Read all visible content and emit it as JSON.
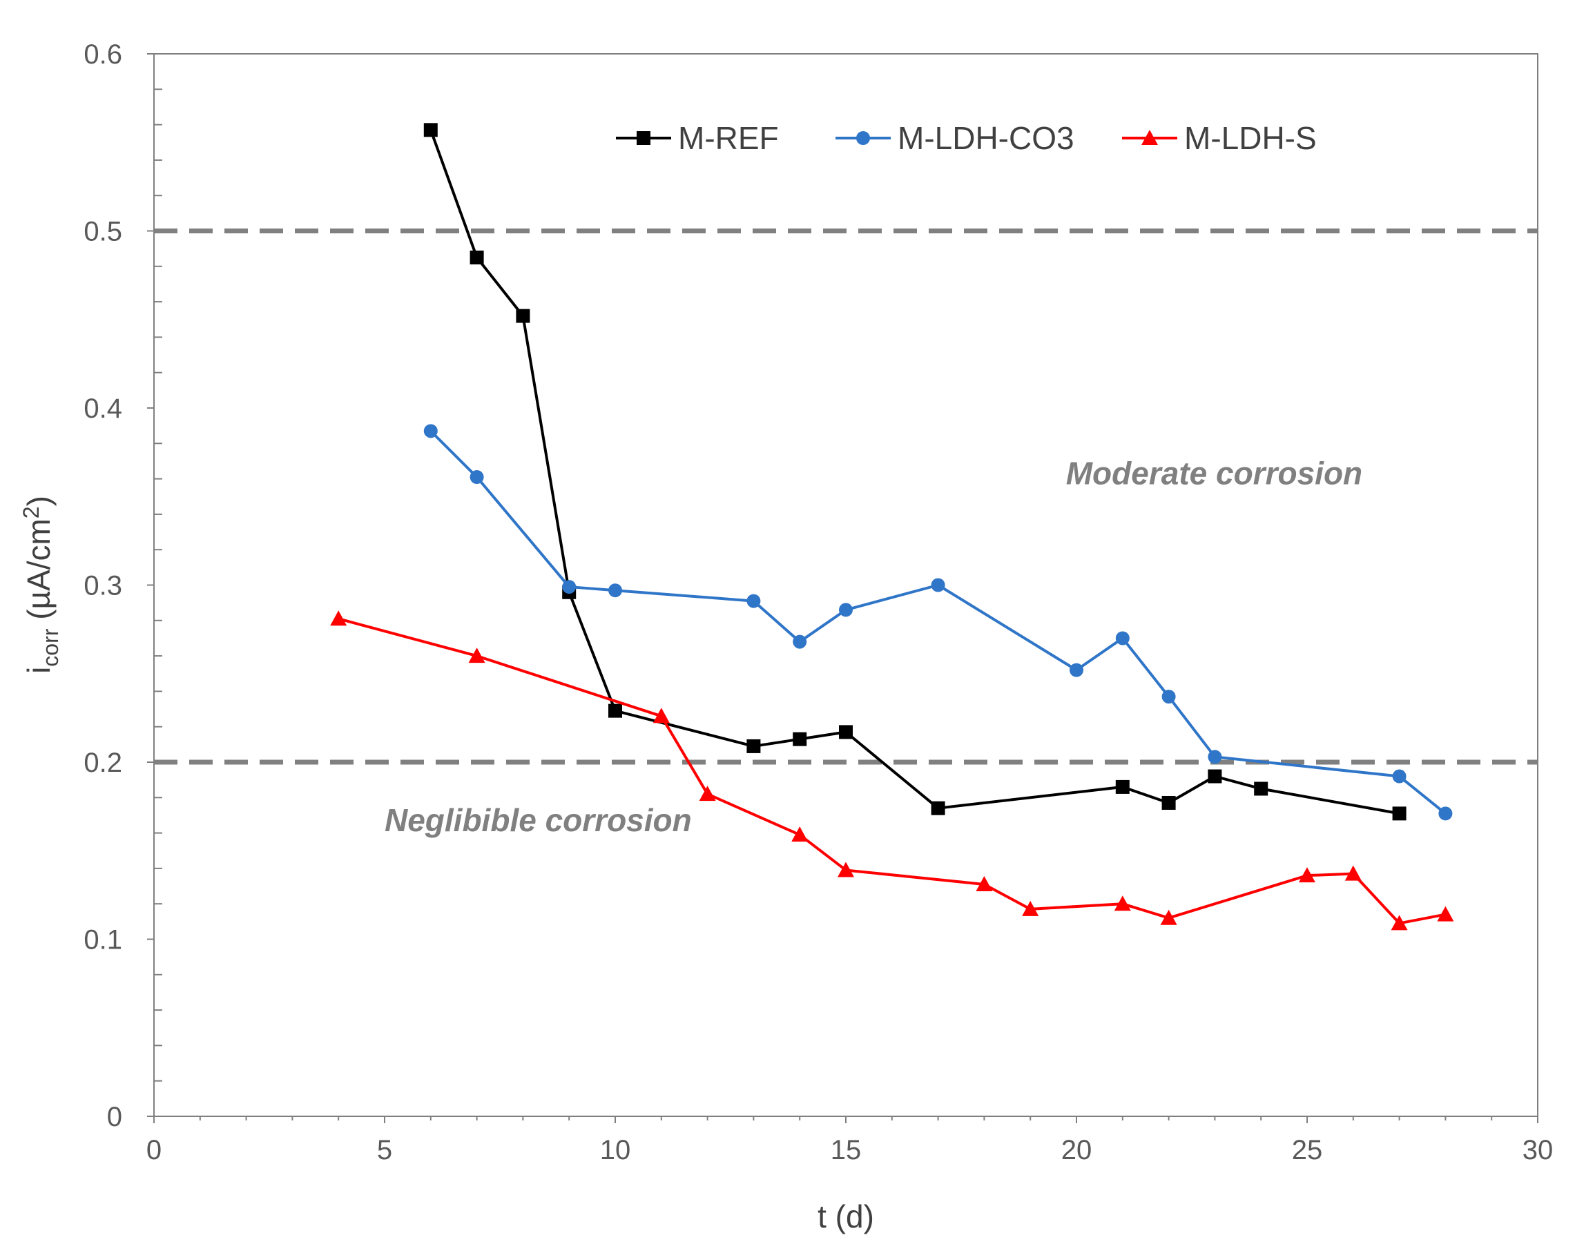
{
  "chart_data": {
    "type": "line",
    "title": "",
    "xlabel": "t (d)",
    "ylabel": {
      "base": "i",
      "subscript": "corr",
      "unit_prefix": " (µA/cm",
      "superscript": "2",
      "unit_suffix": ")"
    },
    "xlim": [
      0,
      30
    ],
    "ylim": [
      0,
      0.6
    ],
    "x_ticks": [
      "0",
      "5",
      "10",
      "15",
      "20",
      "25",
      "30"
    ],
    "y_ticks": [
      "0",
      "0.1",
      "0.2",
      "0.3",
      "0.4",
      "0.5",
      "0.6"
    ],
    "x_tick_values": [
      0,
      5,
      10,
      15,
      20,
      25,
      30
    ],
    "y_tick_values": [
      0,
      0.1,
      0.2,
      0.3,
      0.4,
      0.5,
      0.6
    ],
    "grid": false,
    "legend_position": "top-center",
    "thresholds": [
      {
        "value": 0.5,
        "color": "#808080"
      },
      {
        "value": 0.2,
        "color": "#808080"
      }
    ],
    "annotations": [
      {
        "text": "Moderate corrosion",
        "x": 26.2,
        "y": 0.357
      },
      {
        "text": "Neglibible corrosion",
        "x": 5.0,
        "y": 0.161
      }
    ],
    "series": [
      {
        "name": "M-REF",
        "color": "#000000",
        "marker": "square",
        "x": [
          6,
          7,
          8,
          9,
          10,
          13,
          14,
          15,
          17,
          21,
          22,
          23,
          24,
          27
        ],
        "y": [
          0.557,
          0.485,
          0.452,
          0.296,
          0.229,
          0.209,
          0.213,
          0.217,
          0.174,
          0.186,
          0.177,
          0.192,
          0.185,
          0.171
        ]
      },
      {
        "name": "M-LDH-CO3",
        "color": "#2F75C8",
        "marker": "circle",
        "x": [
          6,
          7,
          9,
          10,
          13,
          14,
          15,
          17,
          20,
          21,
          22,
          23,
          27,
          28
        ],
        "y": [
          0.387,
          0.361,
          0.299,
          0.297,
          0.291,
          0.268,
          0.286,
          0.3,
          0.252,
          0.27,
          0.237,
          0.203,
          0.192,
          0.171
        ]
      },
      {
        "name": "M-LDH-S",
        "color": "#FF0000",
        "marker": "triangle",
        "x": [
          4,
          7,
          11,
          12,
          14,
          15,
          18,
          19,
          21,
          22,
          25,
          26,
          27,
          28
        ],
        "y": [
          0.281,
          0.26,
          0.226,
          0.182,
          0.159,
          0.139,
          0.131,
          0.117,
          0.12,
          0.112,
          0.136,
          0.137,
          0.109,
          0.114
        ]
      }
    ]
  }
}
